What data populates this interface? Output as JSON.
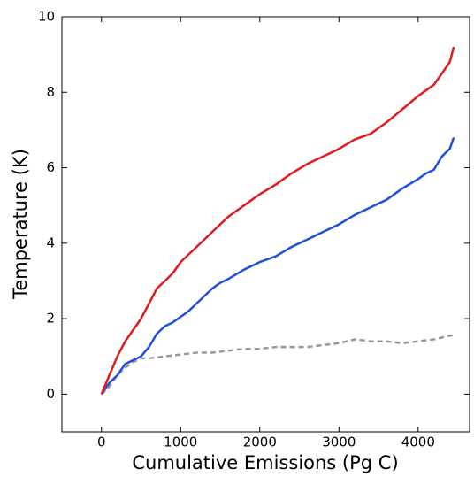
{
  "chart_data": {
    "type": "line",
    "x_label": "Cumulative Emissions (Pg C)",
    "y_label": "Temperature (K)",
    "xlim": [
      -500,
      4650
    ],
    "ylim": [
      -1,
      10
    ],
    "xticks": [
      0,
      1000,
      2000,
      3000,
      4000
    ],
    "yticks": [
      0,
      2,
      4,
      6,
      8,
      10
    ],
    "series": [
      {
        "color": "#e31a1c",
        "dashed": false,
        "x": [
          0,
          100,
          200,
          300,
          400,
          500,
          600,
          700,
          800,
          900,
          1000,
          1100,
          1200,
          1300,
          1400,
          1500,
          1600,
          1700,
          1800,
          1900,
          2000,
          2200,
          2400,
          2600,
          2800,
          3000,
          3200,
          3400,
          3600,
          3800,
          4000,
          4200,
          4300,
          4400,
          4450
        ],
        "values": [
          0,
          0.5,
          1.0,
          1.4,
          1.7,
          2.0,
          2.4,
          2.8,
          3.0,
          3.2,
          3.5,
          3.7,
          3.9,
          4.1,
          4.3,
          4.5,
          4.7,
          4.85,
          5.0,
          5.15,
          5.3,
          5.55,
          5.85,
          6.1,
          6.3,
          6.5,
          6.75,
          6.9,
          7.2,
          7.55,
          7.9,
          8.2,
          8.5,
          8.8,
          9.2
        ]
      },
      {
        "color": "#1f4fe0",
        "dashed": false,
        "x": [
          0,
          100,
          200,
          300,
          400,
          500,
          600,
          700,
          800,
          900,
          1000,
          1100,
          1200,
          1300,
          1400,
          1500,
          1600,
          1800,
          2000,
          2200,
          2400,
          2600,
          2800,
          3000,
          3200,
          3400,
          3600,
          3800,
          4000,
          4100,
          4200,
          4300,
          4400,
          4450
        ],
        "values": [
          0,
          0.3,
          0.5,
          0.8,
          0.9,
          1.0,
          1.25,
          1.6,
          1.8,
          1.9,
          2.05,
          2.2,
          2.4,
          2.6,
          2.8,
          2.95,
          3.05,
          3.3,
          3.5,
          3.65,
          3.9,
          4.1,
          4.3,
          4.5,
          4.75,
          4.95,
          5.15,
          5.45,
          5.7,
          5.85,
          5.95,
          6.3,
          6.5,
          6.8
        ]
      },
      {
        "color": "#999999",
        "dashed": true,
        "x": [
          0,
          100,
          200,
          300,
          400,
          500,
          600,
          800,
          1000,
          1200,
          1400,
          1600,
          1800,
          2000,
          2200,
          2400,
          2600,
          2800,
          3000,
          3200,
          3400,
          3600,
          3800,
          4000,
          4200,
          4400,
          4450
        ],
        "values": [
          0,
          0.2,
          0.5,
          0.7,
          0.85,
          0.95,
          0.95,
          1.0,
          1.05,
          1.1,
          1.1,
          1.15,
          1.2,
          1.2,
          1.25,
          1.25,
          1.25,
          1.3,
          1.35,
          1.45,
          1.4,
          1.4,
          1.35,
          1.4,
          1.45,
          1.55,
          1.55
        ]
      }
    ]
  }
}
